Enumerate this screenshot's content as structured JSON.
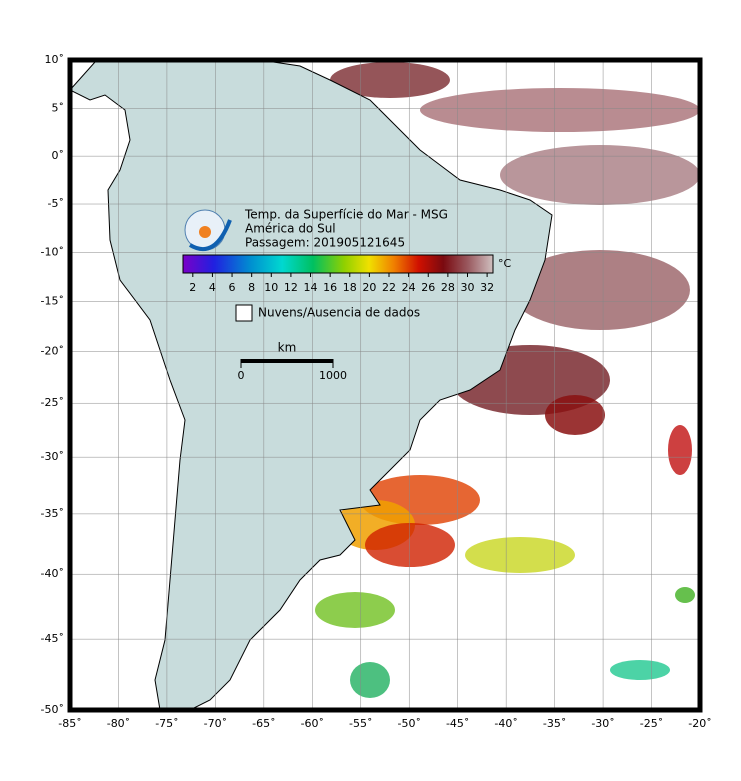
{
  "map": {
    "title_lines": [
      "Temp. da Superfície do Mar - MSG",
      "América do Sul",
      "Passagem: 201905121645"
    ],
    "lonlim": [
      -85,
      -20
    ],
    "latlim": [
      -50,
      10
    ],
    "lonticks": [
      {
        "value": -85,
        "label": "-85˚"
      },
      {
        "value": -80,
        "label": "-80˚"
      },
      {
        "value": -75,
        "label": "-75˚"
      },
      {
        "value": -70,
        "label": "-70˚"
      },
      {
        "value": -65,
        "label": "-65˚"
      },
      {
        "value": -60,
        "label": "-60˚"
      },
      {
        "value": -55,
        "label": "-55˚"
      },
      {
        "value": -50,
        "label": "-50˚"
      },
      {
        "value": -45,
        "label": "-45˚"
      },
      {
        "value": -40,
        "label": "-40˚"
      },
      {
        "value": -35,
        "label": "-35˚"
      },
      {
        "value": -30,
        "label": "-30˚"
      },
      {
        "value": -25,
        "label": "-25˚"
      },
      {
        "value": -20,
        "label": "-20˚"
      }
    ],
    "latticks": [
      {
        "value": 10,
        "label": "10˚"
      },
      {
        "value": 5,
        "label": "5˚"
      },
      {
        "value": 0,
        "label": "0˚"
      },
      {
        "value": -5,
        "label": "-5˚"
      },
      {
        "value": -10,
        "label": "-10˚"
      },
      {
        "value": -15,
        "label": "-15˚"
      },
      {
        "value": -20,
        "label": "-20˚"
      },
      {
        "value": -25,
        "label": "-25˚"
      },
      {
        "value": -30,
        "label": "-30˚"
      },
      {
        "value": -35,
        "label": "-35˚"
      },
      {
        "value": -40,
        "label": "-40˚"
      },
      {
        "value": -45,
        "label": "-45˚"
      },
      {
        "value": -50,
        "label": "-50˚"
      }
    ],
    "colorbar": {
      "range": [
        1,
        32.6
      ],
      "ticks": [
        2,
        4,
        6,
        8,
        10,
        12,
        14,
        16,
        18,
        20,
        22,
        24,
        26,
        28,
        30,
        32
      ],
      "unit": "°C"
    },
    "no_data_label": "Nuvens/Ausencia de dados",
    "scale": {
      "unit": "km",
      "ticks": [
        0,
        1000
      ]
    }
  }
}
